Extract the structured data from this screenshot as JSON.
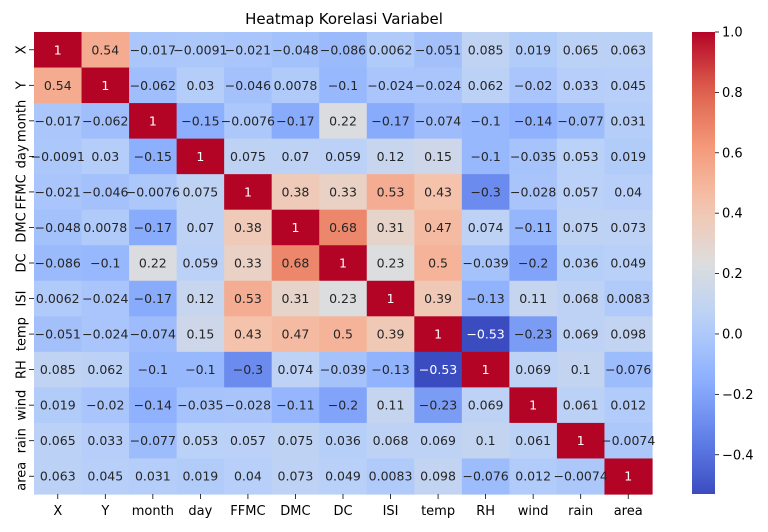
{
  "chart_data": {
    "type": "heatmap",
    "title": "Heatmap Korelasi Variabel",
    "xlabel": "",
    "ylabel": "",
    "x_categories": [
      "X",
      "Y",
      "month",
      "day",
      "FFMC",
      "DMC",
      "DC",
      "ISI",
      "temp",
      "RH",
      "wind",
      "rain",
      "area"
    ],
    "y_categories": [
      "X",
      "Y",
      "month",
      "day",
      "FFMC",
      "DMC",
      "DC",
      "ISI",
      "temp",
      "RH",
      "wind",
      "rain",
      "area"
    ],
    "values": [
      [
        1,
        0.54,
        -0.017,
        -0.0091,
        -0.021,
        -0.048,
        -0.086,
        0.0062,
        -0.051,
        0.085,
        0.019,
        0.065,
        0.063
      ],
      [
        0.54,
        1,
        -0.062,
        0.03,
        -0.046,
        0.0078,
        -0.1,
        -0.024,
        -0.024,
        0.062,
        -0.02,
        0.033,
        0.045
      ],
      [
        -0.017,
        -0.062,
        1,
        -0.15,
        -0.0076,
        -0.17,
        0.22,
        -0.17,
        -0.074,
        -0.1,
        -0.14,
        -0.077,
        0.031
      ],
      [
        -0.0091,
        0.03,
        -0.15,
        1,
        0.075,
        0.07,
        0.059,
        0.12,
        0.15,
        -0.1,
        -0.035,
        0.053,
        0.019
      ],
      [
        -0.021,
        -0.046,
        -0.0076,
        0.075,
        1,
        0.38,
        0.33,
        0.53,
        0.43,
        -0.3,
        -0.028,
        0.057,
        0.04
      ],
      [
        -0.048,
        0.0078,
        -0.17,
        0.07,
        0.38,
        1,
        0.68,
        0.31,
        0.47,
        0.074,
        -0.11,
        0.075,
        0.073
      ],
      [
        -0.086,
        -0.1,
        0.22,
        0.059,
        0.33,
        0.68,
        1,
        0.23,
        0.5,
        -0.039,
        -0.2,
        0.036,
        0.049
      ],
      [
        0.0062,
        -0.024,
        -0.17,
        0.12,
        0.53,
        0.31,
        0.23,
        1,
        0.39,
        -0.13,
        0.11,
        0.068,
        0.0083
      ],
      [
        -0.051,
        -0.024,
        -0.074,
        0.15,
        0.43,
        0.47,
        0.5,
        0.39,
        1,
        -0.53,
        -0.23,
        0.069,
        0.098
      ],
      [
        0.085,
        0.062,
        -0.1,
        -0.1,
        -0.3,
        0.074,
        -0.039,
        -0.13,
        -0.53,
        1,
        0.069,
        0.1,
        -0.076
      ],
      [
        0.019,
        -0.02,
        -0.14,
        -0.035,
        -0.028,
        -0.11,
        -0.2,
        0.11,
        -0.23,
        0.069,
        1,
        0.061,
        0.012
      ],
      [
        0.065,
        0.033,
        -0.077,
        0.053,
        0.057,
        0.075,
        0.036,
        0.068,
        0.069,
        0.1,
        0.061,
        1,
        -0.0074
      ],
      [
        0.063,
        0.045,
        0.031,
        0.019,
        0.04,
        0.073,
        0.049,
        0.0083,
        0.098,
        -0.076,
        0.012,
        -0.0074,
        1
      ]
    ],
    "colormap": "coolwarm",
    "vmin": -0.53,
    "vmax": 1,
    "colorbar_ticks": [
      1.0,
      0.8,
      0.6,
      0.4,
      0.2,
      0.0,
      -0.2,
      -0.4
    ],
    "colorbar_tick_labels": [
      "1.0",
      "0.8",
      "0.6",
      "0.4",
      "0.2",
      "0.0",
      "−0.2",
      "−0.4"
    ],
    "annotations": true,
    "grid": false,
    "legend": "colorbar-right"
  }
}
